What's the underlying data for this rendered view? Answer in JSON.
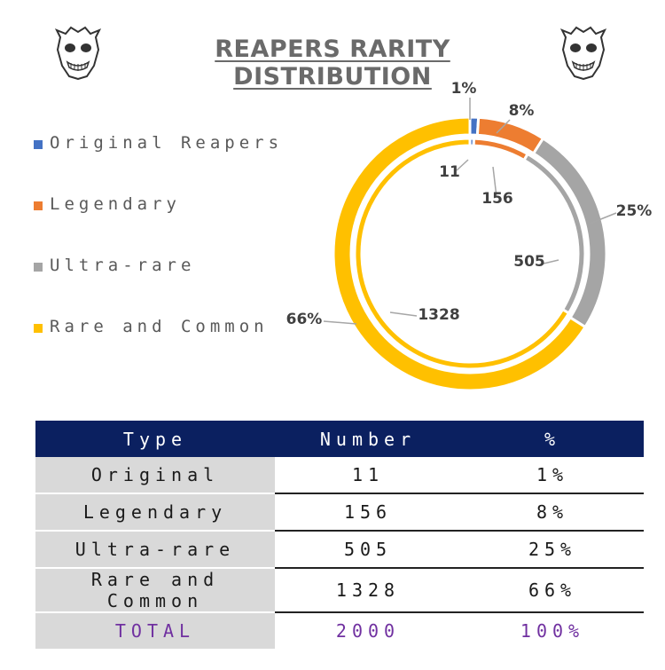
{
  "title": "REAPERS RARITY DISTRIBUTION",
  "chart_data": {
    "type": "pie",
    "title": "REAPERS RARITY DISTRIBUTION",
    "categories": [
      "Original Reapers",
      "Legendary",
      "Ultra-rare",
      "Rare and Common"
    ],
    "series": [
      {
        "name": "Percent",
        "values": [
          1,
          8,
          25,
          66
        ],
        "labels": [
          "1%",
          "8%",
          "25%",
          "66%"
        ]
      },
      {
        "name": "Number",
        "values": [
          11,
          156,
          505,
          1328
        ],
        "labels": [
          "11",
          "156",
          "505",
          "1328"
        ]
      }
    ],
    "colors": [
      "#4472c4",
      "#ed7d31",
      "#a5a5a5",
      "#ffc000"
    ],
    "legend_position": "left"
  },
  "legend": [
    {
      "label": "Original Reapers",
      "color": "#4472c4"
    },
    {
      "label": "Legendary",
      "color": "#ed7d31"
    },
    {
      "label": "Ultra-rare",
      "color": "#a5a5a5"
    },
    {
      "label": "Rare and Common",
      "color": "#ffc000"
    }
  ],
  "table": {
    "headers": [
      "Type",
      "Number",
      "%"
    ],
    "rows": [
      {
        "type": "Original",
        "number": "11",
        "pct": "1%"
      },
      {
        "type": "Legendary",
        "number": "156",
        "pct": "8%"
      },
      {
        "type": "Ultra-rare",
        "number": "505",
        "pct": "25%"
      },
      {
        "type": "Rare and Common",
        "number": "1328",
        "pct": "66%"
      }
    ],
    "total": {
      "type": "TOTAL",
      "number": "2000",
      "pct": "100%"
    }
  },
  "icons": [
    "reaper-mask-icon"
  ]
}
